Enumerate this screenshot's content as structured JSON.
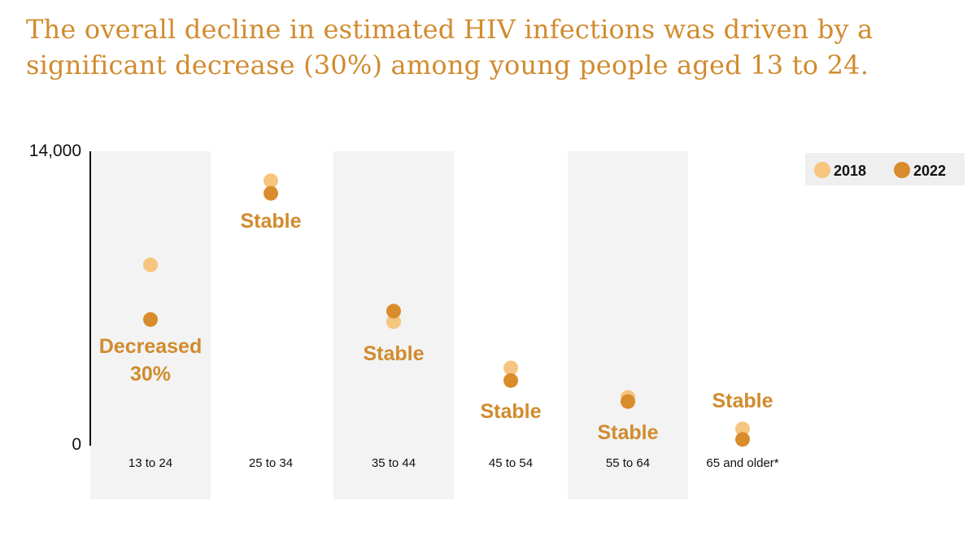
{
  "title": "The overall decline in estimated HIV infections was driven by a significant decrease (30%) among young people aged 13 to 24.",
  "colors": {
    "y2018": "#f6c57f",
    "y2022": "#d98c2b",
    "accent": "#d18b2e",
    "band": "#f3f3f3",
    "legend_bg": "#efefef"
  },
  "chart_data": {
    "type": "scatter",
    "categories": [
      "13 to 24",
      "25 to 34",
      "35 to 44",
      "45 to 54",
      "55 to 64",
      "65 and older*"
    ],
    "series": [
      {
        "name": "2018",
        "values": [
          8600,
          12600,
          5900,
          3700,
          2300,
          800
        ]
      },
      {
        "name": "2022",
        "values": [
          6000,
          12000,
          6400,
          3100,
          2100,
          300
        ]
      }
    ],
    "ylim": [
      0,
      14000
    ],
    "y_ticks": [
      "0",
      "14,000"
    ],
    "legend": {
      "position": "top-right",
      "labels": [
        "2018",
        "2022"
      ]
    },
    "annotations": [
      {
        "category": "13 to 24",
        "lines": [
          "Decreased",
          "30%"
        ]
      },
      {
        "category": "25 to 34",
        "lines": [
          "Stable"
        ]
      },
      {
        "category": "35 to 44",
        "lines": [
          "Stable"
        ]
      },
      {
        "category": "45 to 54",
        "lines": [
          "Stable"
        ]
      },
      {
        "category": "55 to 64",
        "lines": [
          "Stable"
        ]
      },
      {
        "category": "65 and older*",
        "lines": [
          "Stable"
        ]
      }
    ],
    "grid": false
  }
}
